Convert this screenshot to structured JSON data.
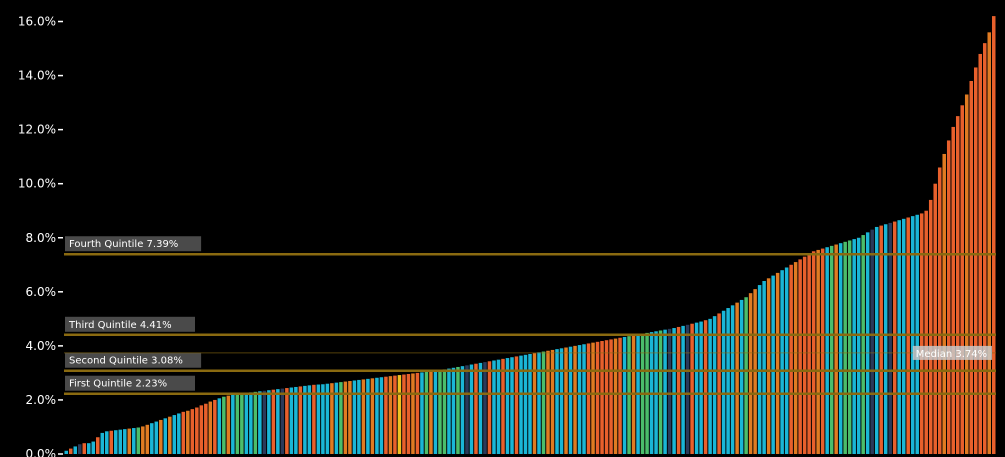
{
  "chart_data": {
    "type": "bar",
    "title": "",
    "xlabel": "",
    "ylabel": "",
    "ylim": [
      0,
      16.5
    ],
    "y_ticks": [
      "0.0%",
      "2.0%",
      "4.0%",
      "6.0%",
      "8.0%",
      "10.0%",
      "12.0%",
      "14.0%",
      "16.0%"
    ],
    "grid": false,
    "colors": {
      "background": "#000000",
      "reference_line": "#8a6a10",
      "reference_label_bg": "#4a4a4a",
      "median_label_bg": "#c8c8c8",
      "bar_palette": [
        "#1ab6d6",
        "#e8602c",
        "#e07b22",
        "#4bbd6b",
        "#2a3a5a",
        "#f0c020"
      ]
    },
    "reference_lines": [
      {
        "label": "First Quintile 2.23%",
        "value": 2.23
      },
      {
        "label": "Second Quintile 3.08%",
        "value": 3.08
      },
      {
        "label": "Third Quintile 4.41%",
        "value": 4.41
      },
      {
        "label": "Fourth Quintile 7.39%",
        "value": 7.39
      },
      {
        "label": "Median 3.74%",
        "value": 3.74
      }
    ],
    "series": [
      {
        "values": [
          0.12,
          0.2,
          0.28,
          0.36,
          0.4,
          0.4,
          0.46,
          0.62,
          0.78,
          0.84,
          0.86,
          0.88,
          0.9,
          0.92,
          0.94,
          0.96,
          0.98,
          1.02,
          1.08,
          1.14,
          1.2,
          1.26,
          1.32,
          1.38,
          1.44,
          1.5,
          1.56,
          1.6,
          1.66,
          1.72,
          1.8,
          1.86,
          1.94,
          2.0,
          2.06,
          2.12,
          2.16,
          2.2,
          2.22,
          2.24,
          2.26,
          2.28,
          2.3,
          2.32,
          2.34,
          2.36,
          2.38,
          2.4,
          2.42,
          2.44,
          2.46,
          2.48,
          2.5,
          2.52,
          2.54,
          2.56,
          2.57,
          2.58,
          2.6,
          2.62,
          2.64,
          2.66,
          2.68,
          2.7,
          2.72,
          2.74,
          2.76,
          2.78,
          2.8,
          2.82,
          2.84,
          2.86,
          2.88,
          2.9,
          2.92,
          2.94,
          2.96,
          2.98,
          3.0,
          3.02,
          3.04,
          3.06,
          3.08,
          3.1,
          3.13,
          3.16,
          3.19,
          3.22,
          3.25,
          3.28,
          3.31,
          3.34,
          3.37,
          3.4,
          3.43,
          3.46,
          3.49,
          3.52,
          3.55,
          3.58,
          3.61,
          3.64,
          3.67,
          3.7,
          3.73,
          3.76,
          3.79,
          3.82,
          3.85,
          3.88,
          3.91,
          3.94,
          3.97,
          4.0,
          4.03,
          4.06,
          4.09,
          4.12,
          4.15,
          4.18,
          4.21,
          4.24,
          4.27,
          4.3,
          4.33,
          4.36,
          4.39,
          4.42,
          4.45,
          4.48,
          4.51,
          4.54,
          4.57,
          4.6,
          4.63,
          4.66,
          4.7,
          4.74,
          4.78,
          4.82,
          4.86,
          4.9,
          4.95,
          5.0,
          5.1,
          5.2,
          5.3,
          5.4,
          5.5,
          5.6,
          5.7,
          5.8,
          5.95,
          6.1,
          6.25,
          6.4,
          6.5,
          6.6,
          6.7,
          6.8,
          6.9,
          7.0,
          7.1,
          7.2,
          7.3,
          7.4,
          7.5,
          7.55,
          7.6,
          7.65,
          7.7,
          7.75,
          7.8,
          7.85,
          7.9,
          7.95,
          8.0,
          8.1,
          8.2,
          8.3,
          8.4,
          8.45,
          8.5,
          8.55,
          8.6,
          8.65,
          8.7,
          8.75,
          8.8,
          8.85,
          8.9,
          9.0,
          9.4,
          10.0,
          10.6,
          11.1,
          11.6,
          12.1,
          12.5,
          12.9,
          13.3,
          13.8,
          14.3,
          14.8,
          15.2,
          15.6,
          16.2
        ]
      }
    ]
  }
}
